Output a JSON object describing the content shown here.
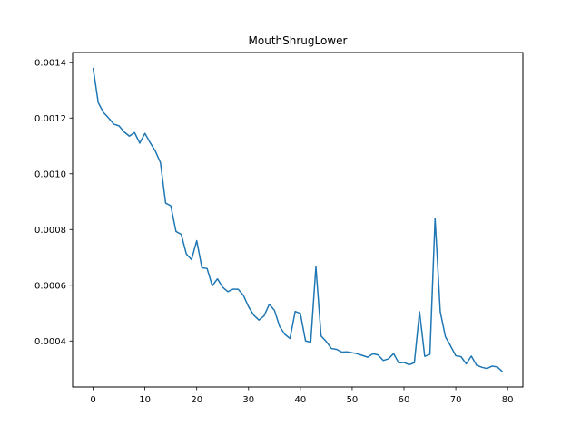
{
  "chart_data": {
    "type": "line",
    "title": "MouthShrugLower",
    "xlabel": "",
    "ylabel": "",
    "xlim": [
      -3.95,
      82.95
    ],
    "ylim": [
      0.000235,
      0.001435
    ],
    "x_ticks": [
      0,
      10,
      20,
      30,
      40,
      50,
      60,
      70,
      80
    ],
    "x_tick_labels": [
      "0",
      "10",
      "20",
      "30",
      "40",
      "50",
      "60",
      "70",
      "80"
    ],
    "y_ticks": [
      0.0004,
      0.0006,
      0.0008,
      0.001,
      0.0012,
      0.0014
    ],
    "y_tick_labels": [
      "0.0004",
      "0.0006",
      "0.0008",
      "0.0010",
      "0.0012",
      "0.0014"
    ],
    "grid": false,
    "line_color": "#1f77b4",
    "x": [
      0,
      1,
      2,
      3,
      4,
      5,
      6,
      7,
      8,
      9,
      10,
      11,
      12,
      13,
      14,
      15,
      16,
      17,
      18,
      19,
      20,
      21,
      22,
      23,
      24,
      25,
      26,
      27,
      28,
      29,
      30,
      31,
      32,
      33,
      34,
      35,
      36,
      37,
      38,
      39,
      40,
      41,
      42,
      43,
      44,
      45,
      46,
      47,
      48,
      49,
      50,
      51,
      52,
      53,
      54,
      55,
      56,
      57,
      58,
      59,
      60,
      61,
      62,
      63,
      64,
      65,
      66,
      67,
      68,
      69,
      70,
      71,
      72,
      73,
      74,
      75,
      76,
      77,
      78,
      79
    ],
    "values": [
      0.00138,
      0.001255,
      0.00122,
      0.0012,
      0.001178,
      0.001172,
      0.00115,
      0.001135,
      0.001148,
      0.00111,
      0.001145,
      0.001112,
      0.001082,
      0.00104,
      0.000895,
      0.000885,
      0.000793,
      0.000783,
      0.000712,
      0.000692,
      0.00076,
      0.000663,
      0.00066,
      0.000598,
      0.000623,
      0.000593,
      0.000577,
      0.000586,
      0.000586,
      0.000564,
      0.000523,
      0.000493,
      0.000475,
      0.00049,
      0.000532,
      0.00051,
      0.000452,
      0.000424,
      0.000409,
      0.000506,
      0.000499,
      0.0004,
      0.000396,
      0.000667,
      0.000418,
      0.000398,
      0.000373,
      0.00037,
      0.00036,
      0.000361,
      0.000358,
      0.000354,
      0.000348,
      0.000342,
      0.000354,
      0.00035,
      0.00033,
      0.000336,
      0.000355,
      0.000321,
      0.000323,
      0.000315,
      0.000322,
      0.000505,
      0.000345,
      0.000352,
      0.00084,
      0.000505,
      0.000415,
      0.000382,
      0.000347,
      0.000344,
      0.000318,
      0.000346,
      0.000313,
      0.000306,
      0.000301,
      0.00031,
      0.000307,
      0.00029
    ]
  }
}
